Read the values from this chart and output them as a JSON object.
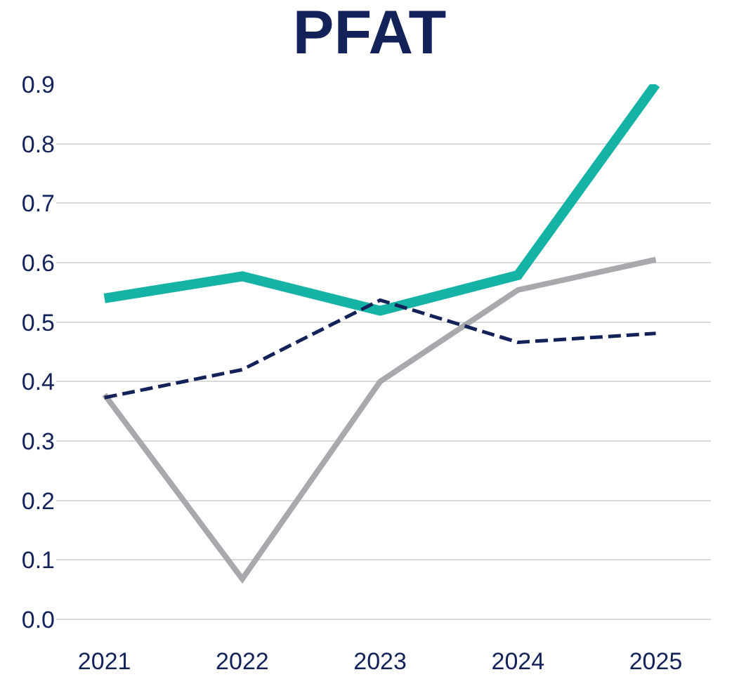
{
  "chart_data": {
    "type": "line",
    "title": "PFAT",
    "categories": [
      "2021",
      "2022",
      "2023",
      "2024",
      "2025"
    ],
    "series": [
      {
        "color": "#14b3a6",
        "values": [
          0.54,
          0.577,
          0.519,
          0.579,
          0.9
        ],
        "line_style": "solid"
      },
      {
        "color": "#a7a9ac",
        "values": [
          0.378,
          0.068,
          0.4,
          0.554,
          0.605
        ],
        "line_style": "solid"
      },
      {
        "color": "#14225a",
        "values": [
          0.373,
          0.42,
          0.537,
          0.466,
          0.481
        ],
        "line_style": "dashed"
      }
    ],
    "ylim": [
      0,
      0.9
    ],
    "yticks": [
      {
        "value": 0,
        "label": "0.0"
      },
      0.1,
      0.2,
      0.3,
      0.4,
      0.5,
      0.6,
      0.7,
      0.8,
      0.9
    ],
    "grid": "y",
    "marker": "none"
  }
}
